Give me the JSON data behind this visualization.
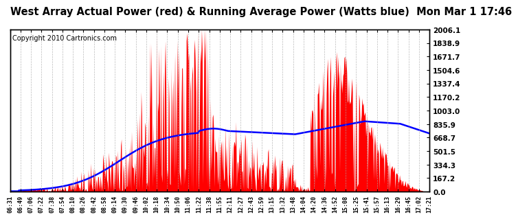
{
  "title": "West Array Actual Power (red) & Running Average Power (Watts blue)  Mon Mar 1 17:46",
  "copyright": "Copyright 2010 Cartronics.com",
  "yticks": [
    0.0,
    167.2,
    334.3,
    501.5,
    668.7,
    835.9,
    1003.0,
    1170.2,
    1337.4,
    1504.6,
    1671.7,
    1838.9,
    2006.1
  ],
  "ymax": 2006.1,
  "xtick_labels": [
    "06:31",
    "06:49",
    "07:06",
    "07:22",
    "07:38",
    "07:54",
    "08:10",
    "08:26",
    "08:42",
    "08:58",
    "09:14",
    "09:30",
    "09:46",
    "10:02",
    "10:18",
    "10:34",
    "10:50",
    "11:06",
    "11:22",
    "11:38",
    "11:55",
    "12:11",
    "12:27",
    "12:43",
    "12:59",
    "13:15",
    "13:32",
    "13:48",
    "14:04",
    "14:20",
    "14:36",
    "14:52",
    "15:08",
    "15:25",
    "15:41",
    "15:57",
    "16:13",
    "16:29",
    "16:45",
    "17:02",
    "17:21"
  ],
  "bg_color": "#ffffff",
  "grid_color": "#aaaaaa",
  "fill_color": "#ff0000",
  "line_color": "#0000ff",
  "title_fontsize": 10.5,
  "copyright_fontsize": 7,
  "tick_label_fontsize": 7.5,
  "xtick_label_fontsize": 6
}
